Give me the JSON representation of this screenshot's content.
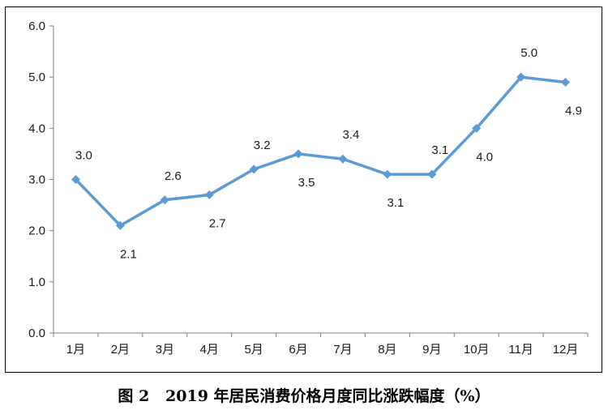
{
  "caption": "图 2   2019 年居民消费价格月度同比涨跌幅度（%）",
  "chart_data": {
    "type": "line",
    "categories": [
      "1月",
      "2月",
      "3月",
      "4月",
      "5月",
      "6月",
      "7月",
      "8月",
      "9月",
      "10月",
      "11月",
      "12月"
    ],
    "series": [
      {
        "values": [
          3.0,
          2.1,
          2.6,
          2.7,
          3.2,
          3.5,
          3.4,
          3.1,
          3.1,
          4.0,
          5.0,
          4.9
        ]
      }
    ],
    "data_labels": [
      "3.0",
      "2.1",
      "2.6",
      "2.7",
      "3.2",
      "3.5",
      "3.4",
      "3.1",
      "3.1",
      "4.0",
      "5.0",
      "4.9"
    ],
    "label_positions": [
      "above",
      "below",
      "above",
      "below",
      "above",
      "below",
      "above",
      "below",
      "above",
      "below",
      "above",
      "below"
    ],
    "yticks": [
      "0.0",
      "1.0",
      "2.0",
      "3.0",
      "4.0",
      "5.0",
      "6.0"
    ],
    "ylim": [
      0,
      6
    ],
    "grid": false,
    "line_color": "#5b9bd5",
    "marker": "diamond"
  }
}
